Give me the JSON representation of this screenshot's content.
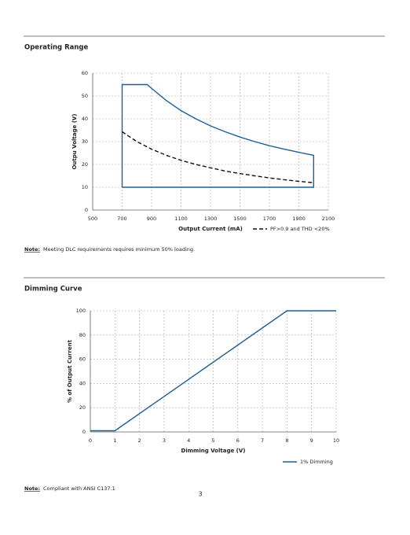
{
  "chart_data": [
    {
      "type": "line",
      "title": "Operating Range",
      "x_label": "Output Current (mA)",
      "y_label": "Outpu Voltage (V)",
      "xlim": [
        500,
        2100
      ],
      "xticks": [
        500,
        700,
        900,
        1100,
        1300,
        1500,
        1700,
        1900,
        2100
      ],
      "ylim": [
        0,
        60
      ],
      "yticks": [
        0,
        10,
        20,
        30,
        40,
        50,
        60
      ],
      "grid": true,
      "legend": "bottom-right",
      "series": [
        {
          "color": "#1f5f96",
          "line_style": "solid",
          "x": [
            700,
            700,
            870,
            900,
            1000,
            1100,
            1200,
            1300,
            1400,
            1500,
            1600,
            1700,
            1800,
            1900,
            2000,
            2000,
            700
          ],
          "values": [
            10,
            55,
            55,
            53.3,
            48,
            43.6,
            40,
            36.9,
            34.3,
            32,
            30,
            28.2,
            26.7,
            25.3,
            24,
            10,
            10
          ]
        },
        {
          "name": "PF>0.9 and THD <20%",
          "color": "#111111",
          "line_style": "dashed",
          "x": [
            700,
            800,
            900,
            1000,
            1100,
            1200,
            1300,
            1400,
            1500,
            1600,
            1700,
            1800,
            1900,
            2000
          ],
          "values": [
            34.3,
            30,
            26.7,
            24,
            21.8,
            20,
            18.5,
            17.1,
            16,
            15,
            14.1,
            13.3,
            12.6,
            12
          ]
        }
      ]
    },
    {
      "type": "line",
      "title": "Dimming Curve",
      "x_label": "Dimming Voltage (V)",
      "y_label": "% of Output Current",
      "xlim": [
        0,
        10
      ],
      "xticks": [
        0,
        1,
        2,
        3,
        4,
        5,
        6,
        7,
        8,
        9,
        10
      ],
      "ylim": [
        0,
        100
      ],
      "yticks": [
        0,
        20,
        40,
        60,
        80,
        100
      ],
      "grid": true,
      "legend": "bottom-right",
      "series": [
        {
          "name": "1% Dimming",
          "color": "#1f5f96",
          "line_style": "solid",
          "x": [
            0,
            1,
            8,
            10
          ],
          "values": [
            1,
            1,
            100,
            100
          ]
        }
      ]
    }
  ],
  "notes": [
    {
      "label": "Note:",
      "text": "Meeting DLC requirements requires minimum 50% loading."
    },
    {
      "label": "Note:",
      "text": "Compliant with ANSI C137.1"
    }
  ],
  "page_number": 3
}
